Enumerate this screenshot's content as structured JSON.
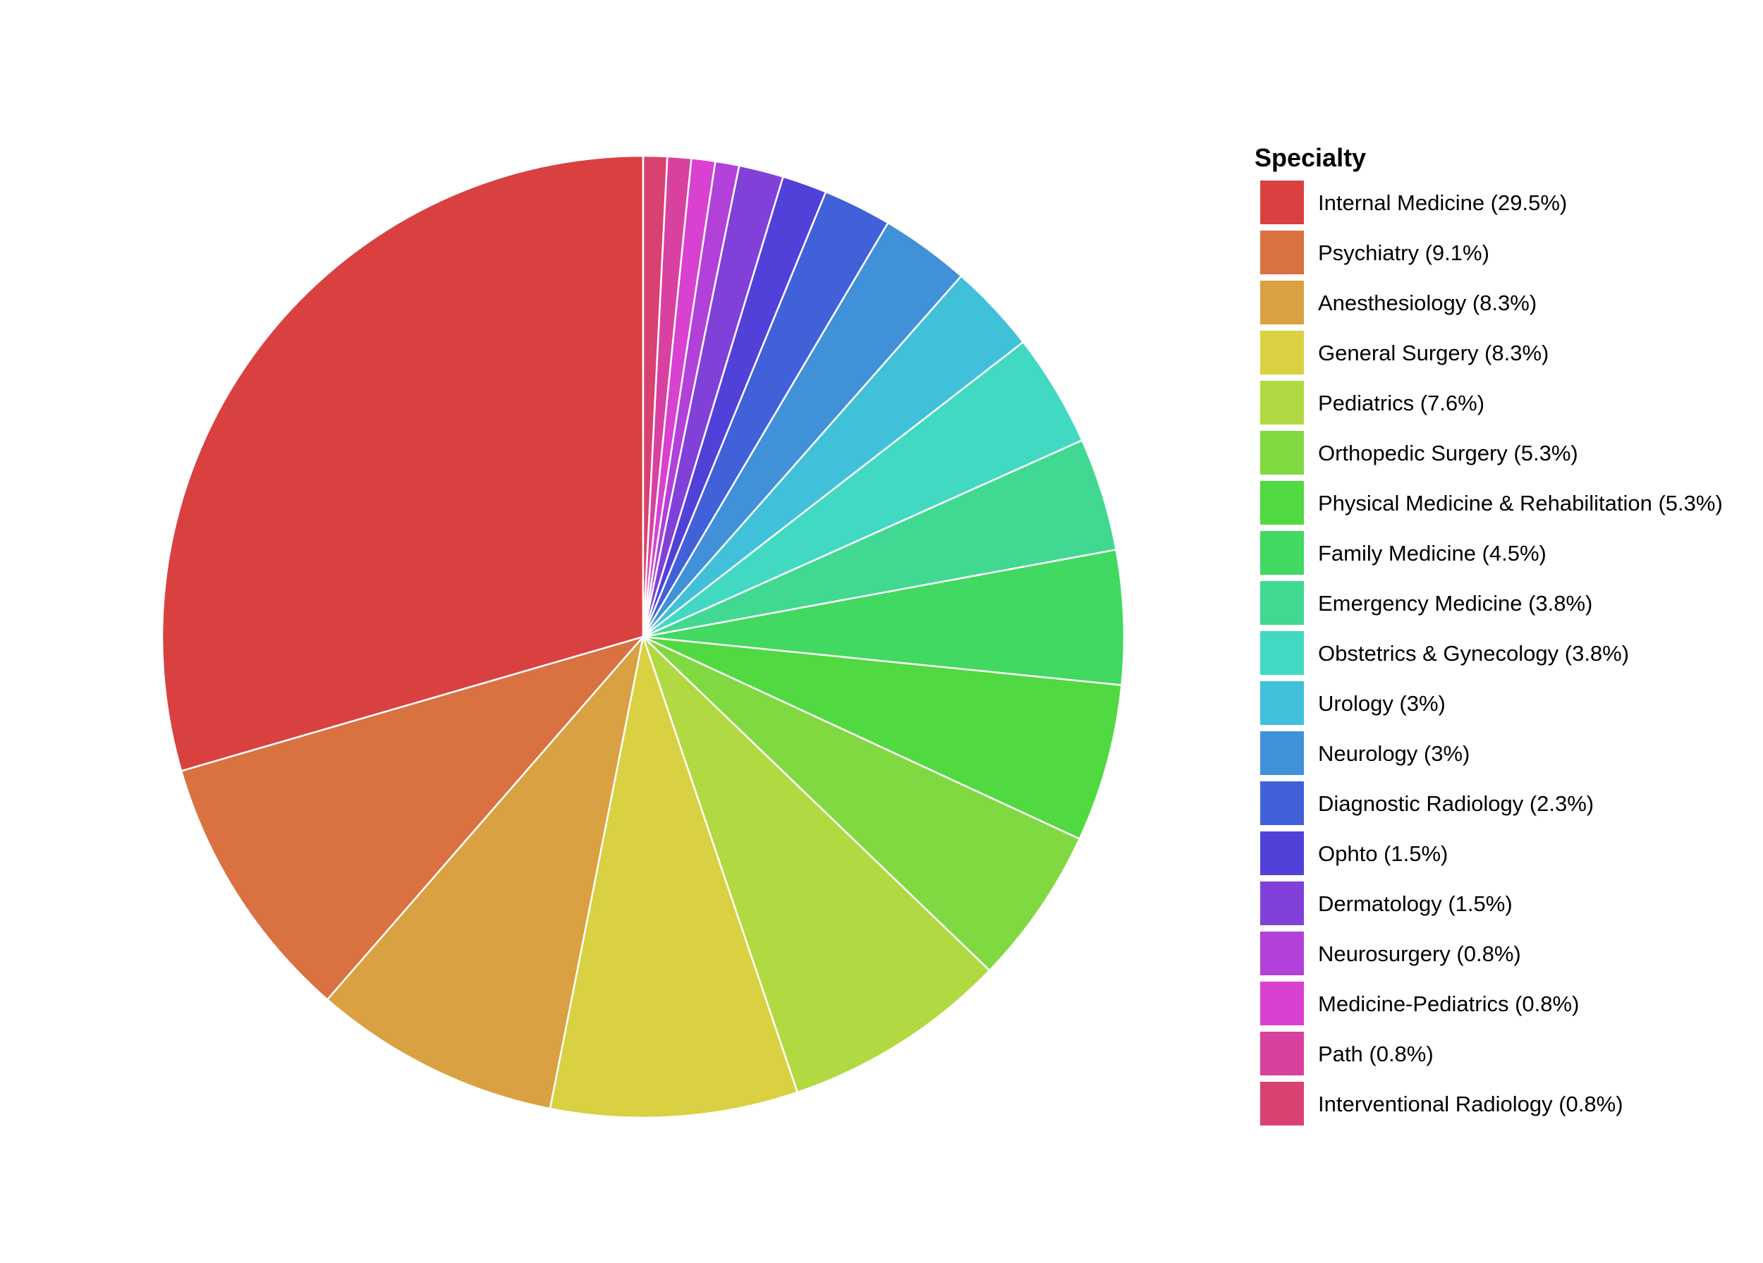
{
  "chart_data": {
    "type": "pie",
    "title": "",
    "legend_title": "Specialty",
    "legend_position": "right",
    "start_angle": "12 o'clock",
    "direction": "counter-clockwise",
    "slice_border_color": "#ffffff",
    "slices": [
      {
        "label": "Internal Medicine (29.5%)",
        "name": "Internal Medicine",
        "value": 29.5,
        "color": "#D94141"
      },
      {
        "label": "Psychiatry (9.1%)",
        "name": "Psychiatry",
        "value": 9.1,
        "color": "#D97141"
      },
      {
        "label": "Anesthesiology (8.3%)",
        "name": "Anesthesiology",
        "value": 8.3,
        "color": "#D9A141"
      },
      {
        "label": "General Surgery (8.3%)",
        "name": "General Surgery",
        "value": 8.3,
        "color": "#D9D141"
      },
      {
        "label": "Pediatrics (7.6%)",
        "name": "Pediatrics",
        "value": 7.6,
        "color": "#B1D941"
      },
      {
        "label": "Orthopedic Surgery (5.3%)",
        "name": "Orthopedic Surgery",
        "value": 5.3,
        "color": "#81D941"
      },
      {
        "label": "Physical Medicine & Rehabilitation (5.3%)",
        "name": "Physical Medicine & Rehabilitation",
        "value": 5.3,
        "color": "#51D941"
      },
      {
        "label": "Family Medicine (4.5%)",
        "name": "Family Medicine",
        "value": 4.5,
        "color": "#41D961"
      },
      {
        "label": "Emergency Medicine (3.8%)",
        "name": "Emergency Medicine",
        "value": 3.8,
        "color": "#41D991"
      },
      {
        "label": "Obstetrics & Gynecology (3.8%)",
        "name": "Obstetrics & Gynecology",
        "value": 3.8,
        "color": "#41D9C1"
      },
      {
        "label": "Urology (3%)",
        "name": "Urology",
        "value": 3.0,
        "color": "#41C1D9"
      },
      {
        "label": "Neurology (3%)",
        "name": "Neurology",
        "value": 3.0,
        "color": "#4191D9"
      },
      {
        "label": "Diagnostic Radiology (2.3%)",
        "name": "Diagnostic Radiology",
        "value": 2.3,
        "color": "#4161D9"
      },
      {
        "label": "Ophto (1.5%)",
        "name": "Ophto",
        "value": 1.5,
        "color": "#5141D9"
      },
      {
        "label": "Dermatology (1.5%)",
        "name": "Dermatology",
        "value": 1.5,
        "color": "#8141D9"
      },
      {
        "label": "Neurosurgery (0.8%)",
        "name": "Neurosurgery",
        "value": 0.8,
        "color": "#B141D9"
      },
      {
        "label": "Medicine-Pediatrics (0.8%)",
        "name": "Medicine-Pediatrics",
        "value": 0.8,
        "color": "#D941D1"
      },
      {
        "label": "Path (0.8%)",
        "name": "Path",
        "value": 0.8,
        "color": "#D941A1"
      },
      {
        "label": "Interventional Radiology (0.8%)",
        "name": "Interventional Radiology",
        "value": 0.8,
        "color": "#D94171"
      }
    ]
  }
}
